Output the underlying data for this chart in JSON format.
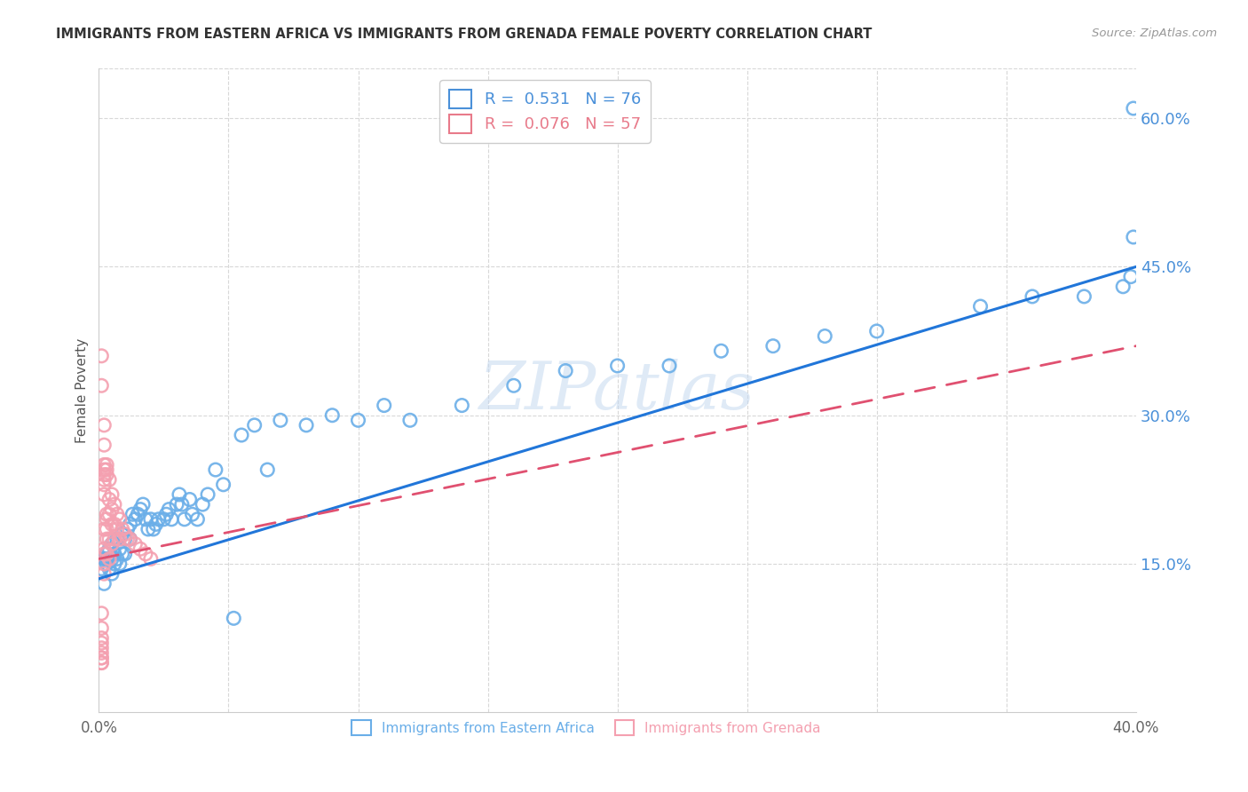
{
  "title": "IMMIGRANTS FROM EASTERN AFRICA VS IMMIGRANTS FROM GRENADA FEMALE POVERTY CORRELATION CHART",
  "source": "Source: ZipAtlas.com",
  "ylabel": "Female Poverty",
  "series1_label": "Immigrants from Eastern Africa",
  "series1_color": "#6aaee8",
  "series1_R": 0.531,
  "series1_N": 76,
  "series2_label": "Immigrants from Grenada",
  "series2_color": "#f4a0b0",
  "series2_R": 0.076,
  "series2_N": 57,
  "xlim": [
    0.0,
    0.4
  ],
  "ylim": [
    0.0,
    0.65
  ],
  "ytick_right": [
    0.15,
    0.3,
    0.45,
    0.6
  ],
  "ytick_right_labels": [
    "15.0%",
    "30.0%",
    "45.0%",
    "60.0%"
  ],
  "watermark": "ZIPatlas",
  "background_color": "#ffffff",
  "grid_color": "#d8d8d8",
  "title_color": "#333333",
  "axis_label_color": "#555555",
  "right_tick_color": "#4a90d9",
  "legend_r1_color": "#4a90d9",
  "legend_r2_color": "#e87a8a",
  "series1_x": [
    0.001,
    0.002,
    0.002,
    0.003,
    0.003,
    0.003,
    0.004,
    0.004,
    0.005,
    0.005,
    0.005,
    0.006,
    0.006,
    0.007,
    0.007,
    0.008,
    0.008,
    0.009,
    0.009,
    0.01,
    0.01,
    0.011,
    0.012,
    0.012,
    0.013,
    0.014,
    0.015,
    0.016,
    0.017,
    0.018,
    0.019,
    0.02,
    0.021,
    0.022,
    0.023,
    0.025,
    0.026,
    0.027,
    0.028,
    0.03,
    0.031,
    0.032,
    0.033,
    0.035,
    0.036,
    0.038,
    0.04,
    0.042,
    0.045,
    0.048,
    0.052,
    0.055,
    0.06,
    0.065,
    0.07,
    0.08,
    0.09,
    0.1,
    0.11,
    0.12,
    0.14,
    0.16,
    0.18,
    0.2,
    0.22,
    0.24,
    0.26,
    0.28,
    0.3,
    0.34,
    0.36,
    0.38,
    0.395,
    0.398,
    0.399,
    0.399
  ],
  "series1_y": [
    0.145,
    0.155,
    0.13,
    0.16,
    0.155,
    0.15,
    0.165,
    0.145,
    0.17,
    0.155,
    0.14,
    0.16,
    0.15,
    0.175,
    0.155,
    0.165,
    0.15,
    0.18,
    0.16,
    0.175,
    0.16,
    0.185,
    0.19,
    0.175,
    0.2,
    0.195,
    0.2,
    0.205,
    0.21,
    0.195,
    0.185,
    0.195,
    0.185,
    0.19,
    0.195,
    0.195,
    0.2,
    0.205,
    0.195,
    0.21,
    0.22,
    0.21,
    0.195,
    0.215,
    0.2,
    0.195,
    0.21,
    0.22,
    0.245,
    0.23,
    0.095,
    0.28,
    0.29,
    0.245,
    0.295,
    0.29,
    0.3,
    0.295,
    0.31,
    0.295,
    0.31,
    0.33,
    0.345,
    0.35,
    0.35,
    0.365,
    0.37,
    0.38,
    0.385,
    0.41,
    0.42,
    0.42,
    0.43,
    0.44,
    0.61,
    0.48
  ],
  "series2_x": [
    0.001,
    0.001,
    0.001,
    0.001,
    0.001,
    0.001,
    0.001,
    0.001,
    0.001,
    0.001,
    0.001,
    0.001,
    0.002,
    0.002,
    0.002,
    0.002,
    0.002,
    0.002,
    0.002,
    0.002,
    0.002,
    0.002,
    0.002,
    0.002,
    0.002,
    0.003,
    0.003,
    0.003,
    0.003,
    0.003,
    0.003,
    0.003,
    0.003,
    0.004,
    0.004,
    0.004,
    0.004,
    0.004,
    0.005,
    0.005,
    0.005,
    0.005,
    0.006,
    0.006,
    0.006,
    0.007,
    0.007,
    0.008,
    0.008,
    0.009,
    0.01,
    0.011,
    0.012,
    0.014,
    0.016,
    0.018,
    0.02
  ],
  "series2_y": [
    0.36,
    0.33,
    0.1,
    0.085,
    0.075,
    0.07,
    0.065,
    0.06,
    0.055,
    0.055,
    0.05,
    0.05,
    0.29,
    0.27,
    0.25,
    0.245,
    0.24,
    0.235,
    0.23,
    0.22,
    0.185,
    0.165,
    0.16,
    0.15,
    0.14,
    0.25,
    0.245,
    0.24,
    0.2,
    0.195,
    0.185,
    0.175,
    0.16,
    0.235,
    0.215,
    0.2,
    0.175,
    0.155,
    0.22,
    0.205,
    0.19,
    0.17,
    0.21,
    0.19,
    0.175,
    0.2,
    0.185,
    0.195,
    0.175,
    0.185,
    0.18,
    0.175,
    0.175,
    0.17,
    0.165,
    0.16,
    0.155
  ],
  "trend1_x": [
    0.0,
    0.4
  ],
  "trend1_y": [
    0.135,
    0.45
  ],
  "trend2_x": [
    0.0,
    0.4
  ],
  "trend2_y": [
    0.155,
    0.37
  ]
}
